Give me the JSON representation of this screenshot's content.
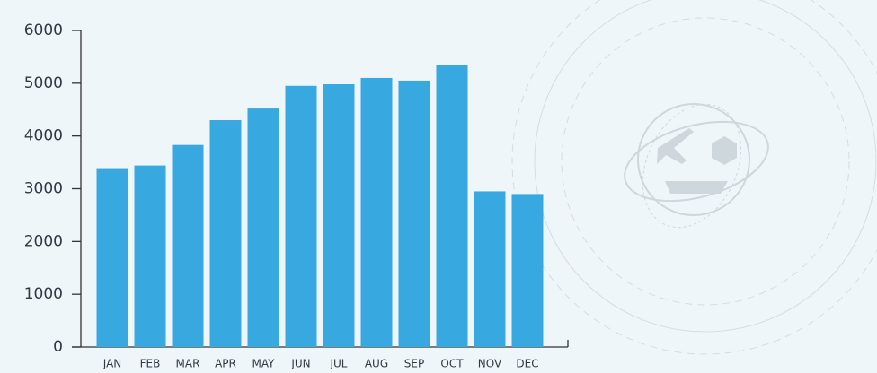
{
  "chart_data": {
    "type": "bar",
    "categories": [
      "JAN",
      "FEB",
      "MAR",
      "APR",
      "MAY",
      "JUN",
      "JUL",
      "AUG",
      "SEP",
      "OCT",
      "NOV",
      "DEC"
    ],
    "values": [
      3390,
      3440,
      3830,
      4300,
      4520,
      4950,
      4980,
      5100,
      5050,
      5340,
      2950,
      2900
    ],
    "color": "#38a8e0",
    "ylim": [
      0,
      6000
    ],
    "yticks": [
      0,
      1000,
      2000,
      3000,
      4000,
      5000,
      6000
    ],
    "grid": false
  }
}
